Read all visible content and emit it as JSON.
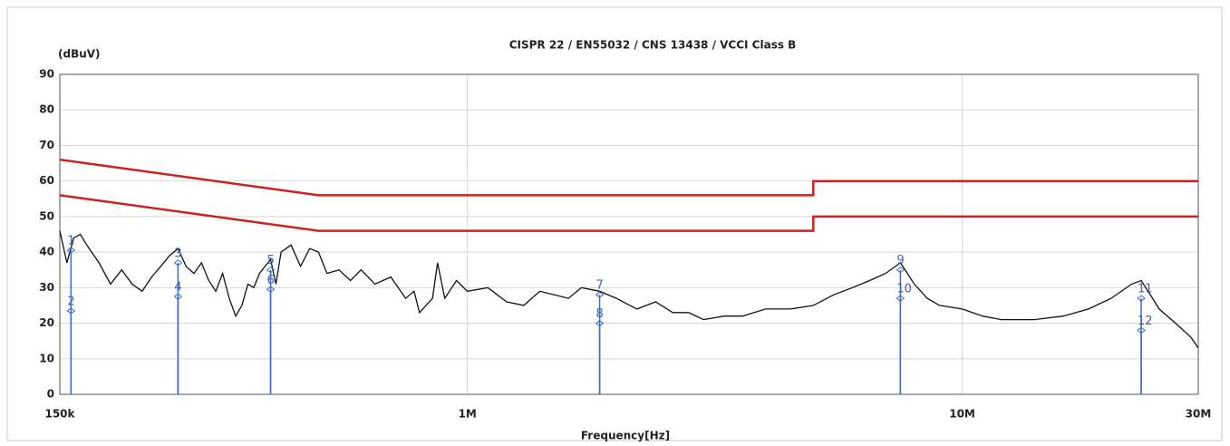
{
  "chart_data": {
    "type": "line",
    "title": "CISPR 22 / EN55032 / CNS 13438 / VCCI Class B",
    "y_label": "(dBuV)",
    "x_label": "Frequency[Hz]",
    "log_x": true,
    "grid": true,
    "xlim": [
      150000,
      30000000
    ],
    "ylim": [
      0,
      90
    ],
    "xticks": [
      {
        "value": 150000,
        "label": "150k"
      },
      {
        "value": 1000000,
        "label": "1M"
      },
      {
        "value": 10000000,
        "label": "10M"
      },
      {
        "value": 30000000,
        "label": "30M"
      }
    ],
    "yticks": [
      0,
      10,
      20,
      30,
      40,
      50,
      60,
      70,
      80,
      90
    ],
    "series": [
      {
        "color": "#cc2222",
        "x": [
          150000,
          500000,
          5000000,
          5000000,
          30000000
        ],
        "values": [
          66,
          56,
          56,
          60,
          60
        ]
      },
      {
        "color": "#cc2222",
        "x": [
          150000,
          500000,
          5000000,
          5000000,
          30000000
        ],
        "values": [
          56,
          46,
          46,
          50,
          50
        ]
      },
      {
        "color": "#111111",
        "x": [
          150000,
          155000,
          160000,
          165000,
          170000,
          180000,
          190000,
          200000,
          210000,
          220000,
          230000,
          240000,
          250000,
          260000,
          270000,
          280000,
          290000,
          300000,
          310000,
          320000,
          330000,
          340000,
          350000,
          360000,
          370000,
          380000,
          400000,
          410000,
          420000,
          440000,
          460000,
          480000,
          500000,
          520000,
          550000,
          580000,
          610000,
          650000,
          700000,
          750000,
          780000,
          800000,
          850000,
          870000,
          900000,
          950000,
          1000000,
          1100000,
          1200000,
          1300000,
          1400000,
          1500000,
          1600000,
          1700000,
          1850000,
          2000000,
          2200000,
          2400000,
          2600000,
          2800000,
          3000000,
          3300000,
          3600000,
          4000000,
          4500000,
          5000000,
          5500000,
          6000000,
          6500000,
          7000000,
          7500000,
          8000000,
          8500000,
          9000000,
          10000000,
          11000000,
          12000000,
          14000000,
          16000000,
          18000000,
          20000000,
          22000000,
          23000000,
          24000000,
          25000000,
          27000000,
          29000000,
          30000000
        ],
        "values": [
          46,
          37,
          44,
          45,
          42,
          37,
          31,
          35,
          31,
          29,
          33,
          36,
          39,
          41,
          36,
          34,
          37,
          32,
          29,
          34,
          27,
          22,
          25,
          31,
          30,
          34,
          38,
          31,
          40,
          42,
          36,
          41,
          40,
          34,
          35,
          32,
          35,
          31,
          33,
          27,
          29,
          23,
          27,
          37,
          27,
          32,
          29,
          30,
          26,
          25,
          29,
          28,
          27,
          30,
          29,
          27,
          24,
          26,
          23,
          23,
          21,
          22,
          22,
          24,
          24,
          25,
          28,
          30,
          32,
          34,
          37,
          31,
          27,
          25,
          24,
          22,
          21,
          21,
          22,
          24,
          27,
          31,
          32,
          28,
          24,
          20,
          16,
          13
        ]
      }
    ],
    "markers_color": "#3a6fc0",
    "markers": [
      {
        "label": "1",
        "x": 158000,
        "value": 40.5
      },
      {
        "label": "2",
        "x": 158000,
        "value": 23.5
      },
      {
        "label": "3",
        "x": 260000,
        "value": 37
      },
      {
        "label": "4",
        "x": 260000,
        "value": 27.5
      },
      {
        "label": "5",
        "x": 400000,
        "value": 35
      },
      {
        "label": "6",
        "x": 400000,
        "value": 29.5
      },
      {
        "label": "7",
        "x": 1850000,
        "value": 28
      },
      {
        "label": "8",
        "x": 1850000,
        "value": 20
      },
      {
        "label": "9",
        "x": 7500000,
        "value": 35
      },
      {
        "label": "10",
        "x": 7500000,
        "value": 27
      },
      {
        "label": "11",
        "x": 23000000,
        "value": 27
      },
      {
        "label": "12",
        "x": 23000000,
        "value": 18
      }
    ]
  }
}
